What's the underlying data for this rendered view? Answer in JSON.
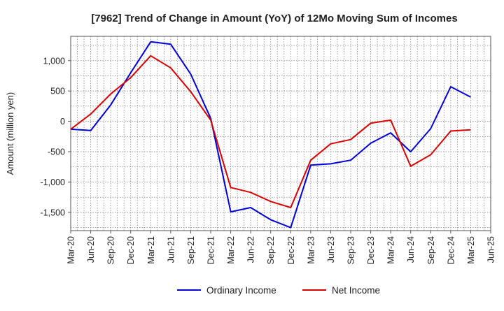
{
  "chart_data": {
    "type": "line",
    "title": "[7962]  Trend of Change in Amount (YoY) of 12Mo Moving Sum of Incomes",
    "xlabel": "",
    "ylabel": "Amount (million yen)",
    "ylim": [
      -1800,
      1400
    ],
    "yticks": [
      -1500,
      -1000,
      -500,
      0,
      500,
      1000
    ],
    "ytick_labels": [
      "-1,500",
      "-1,000",
      "-500",
      "0",
      "500",
      "1,000"
    ],
    "categories": [
      "Mar-20",
      "Jun-20",
      "Sep-20",
      "Dec-20",
      "Mar-21",
      "Jun-21",
      "Sep-21",
      "Dec-21",
      "Mar-22",
      "Jun-22",
      "Sep-22",
      "Dec-22",
      "Mar-23",
      "Jun-23",
      "Sep-23",
      "Dec-23",
      "Mar-24",
      "Jun-24",
      "Sep-24",
      "Dec-24",
      "Mar-25",
      "Jun-25"
    ],
    "grid": true,
    "legend_position": "bottom",
    "series": [
      {
        "name": "Ordinary Income",
        "color": "#0000dd",
        "values": [
          -130,
          -150,
          270,
          800,
          1310,
          1270,
          780,
          50,
          -1490,
          -1420,
          -1620,
          -1750,
          -720,
          -700,
          -640,
          -360,
          -190,
          -500,
          -120,
          570,
          400,
          null
        ]
      },
      {
        "name": "Net Income",
        "color": "#dd0000",
        "values": [
          -130,
          120,
          450,
          720,
          1080,
          880,
          490,
          20,
          -1090,
          -1170,
          -1320,
          -1420,
          -640,
          -370,
          -300,
          -30,
          20,
          -740,
          -550,
          -160,
          -140,
          null
        ]
      }
    ]
  }
}
